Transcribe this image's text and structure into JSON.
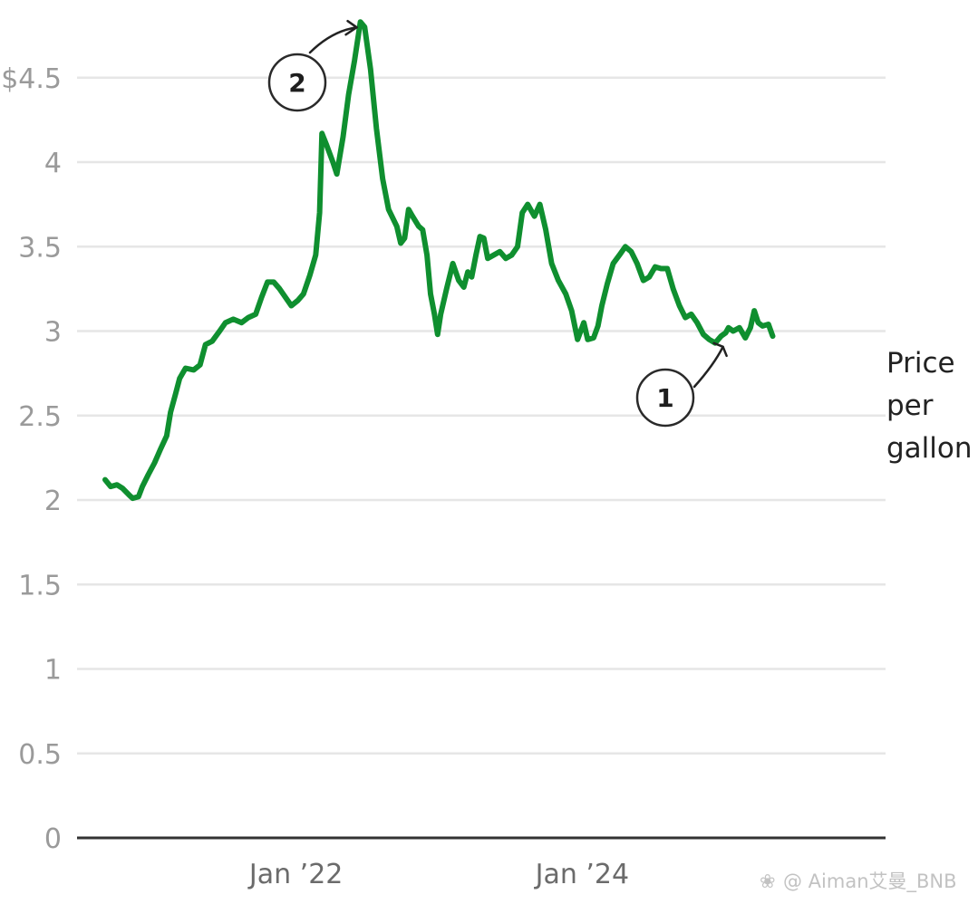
{
  "chart_data": {
    "type": "line",
    "title": "",
    "xlabel": "",
    "ylabel": "",
    "ylim": [
      0,
      5
    ],
    "x_range": [
      "2020-09",
      "2025-05"
    ],
    "yticks": [
      {
        "value": 0,
        "label": "0"
      },
      {
        "value": 0.5,
        "label": "0.5"
      },
      {
        "value": 1,
        "label": "1"
      },
      {
        "value": 1.5,
        "label": "1.5"
      },
      {
        "value": 2,
        "label": "2"
      },
      {
        "value": 2.5,
        "label": "2.5"
      },
      {
        "value": 3,
        "label": "3"
      },
      {
        "value": 3.5,
        "label": "3.5"
      },
      {
        "value": 4,
        "label": "4"
      },
      {
        "value": 4.5,
        "label": "$4.5"
      }
    ],
    "xticks": [
      {
        "date": "2022-01",
        "label": "Jan ’22"
      },
      {
        "date": "2024-01",
        "label": "Jan ’24"
      }
    ],
    "grid": true,
    "series": [
      {
        "name": "Price per gallon",
        "name_lines": [
          "Price",
          "per",
          "gallon"
        ],
        "color": "#0f8f2f",
        "points": [
          [
            "2020-09-01",
            2.12
          ],
          [
            "2020-09-15",
            2.08
          ],
          [
            "2020-10-01",
            2.09
          ],
          [
            "2020-10-15",
            2.07
          ],
          [
            "2020-11-01",
            2.03
          ],
          [
            "2020-11-10",
            2.01
          ],
          [
            "2020-11-25",
            2.02
          ],
          [
            "2020-12-05",
            2.08
          ],
          [
            "2020-12-20",
            2.15
          ],
          [
            "2021-01-05",
            2.22
          ],
          [
            "2021-01-20",
            2.3
          ],
          [
            "2021-02-05",
            2.38
          ],
          [
            "2021-02-15",
            2.52
          ],
          [
            "2021-02-28",
            2.63
          ],
          [
            "2021-03-10",
            2.72
          ],
          [
            "2021-03-25",
            2.78
          ],
          [
            "2021-04-15",
            2.77
          ],
          [
            "2021-05-01",
            2.8
          ],
          [
            "2021-05-15",
            2.92
          ],
          [
            "2021-06-01",
            2.94
          ],
          [
            "2021-06-20",
            3.0
          ],
          [
            "2021-07-05",
            3.05
          ],
          [
            "2021-07-25",
            3.07
          ],
          [
            "2021-08-15",
            3.05
          ],
          [
            "2021-09-01",
            3.08
          ],
          [
            "2021-09-20",
            3.1
          ],
          [
            "2021-10-05",
            3.2
          ],
          [
            "2021-10-20",
            3.29
          ],
          [
            "2021-11-05",
            3.29
          ],
          [
            "2021-11-20",
            3.25
          ],
          [
            "2021-12-05",
            3.2
          ],
          [
            "2021-12-20",
            3.15
          ],
          [
            "2022-01-05",
            3.18
          ],
          [
            "2022-01-20",
            3.22
          ],
          [
            "2022-02-05",
            3.33
          ],
          [
            "2022-02-20",
            3.45
          ],
          [
            "2022-03-02",
            3.7
          ],
          [
            "2022-03-08",
            4.17
          ],
          [
            "2022-03-20",
            4.1
          ],
          [
            "2022-04-05",
            4.0
          ],
          [
            "2022-04-15",
            3.93
          ],
          [
            "2022-05-01",
            4.15
          ],
          [
            "2022-05-15",
            4.4
          ],
          [
            "2022-05-30",
            4.6
          ],
          [
            "2022-06-14",
            4.83
          ],
          [
            "2022-06-25",
            4.8
          ],
          [
            "2022-07-10",
            4.55
          ],
          [
            "2022-07-25",
            4.2
          ],
          [
            "2022-08-10",
            3.9
          ],
          [
            "2022-08-25",
            3.72
          ],
          [
            "2022-09-15",
            3.62
          ],
          [
            "2022-09-25",
            3.52
          ],
          [
            "2022-10-05",
            3.55
          ],
          [
            "2022-10-15",
            3.72
          ],
          [
            "2022-10-25",
            3.68
          ],
          [
            "2022-11-10",
            3.62
          ],
          [
            "2022-11-20",
            3.6
          ],
          [
            "2022-12-01",
            3.45
          ],
          [
            "2022-12-10",
            3.22
          ],
          [
            "2022-12-20",
            3.1
          ],
          [
            "2022-12-28",
            2.98
          ],
          [
            "2023-01-05",
            3.1
          ],
          [
            "2023-01-20",
            3.25
          ],
          [
            "2023-02-05",
            3.4
          ],
          [
            "2023-02-20",
            3.3
          ],
          [
            "2023-03-05",
            3.26
          ],
          [
            "2023-03-15",
            3.35
          ],
          [
            "2023-03-25",
            3.32
          ],
          [
            "2023-04-05",
            3.45
          ],
          [
            "2023-04-15",
            3.56
          ],
          [
            "2023-04-25",
            3.55
          ],
          [
            "2023-05-05",
            3.43
          ],
          [
            "2023-05-20",
            3.45
          ],
          [
            "2023-06-05",
            3.47
          ],
          [
            "2023-06-20",
            3.43
          ],
          [
            "2023-07-05",
            3.45
          ],
          [
            "2023-07-20",
            3.5
          ],
          [
            "2023-08-01",
            3.7
          ],
          [
            "2023-08-15",
            3.75
          ],
          [
            "2023-09-01",
            3.68
          ],
          [
            "2023-09-15",
            3.75
          ],
          [
            "2023-09-30",
            3.6
          ],
          [
            "2023-10-15",
            3.4
          ],
          [
            "2023-11-01",
            3.3
          ],
          [
            "2023-11-20",
            3.22
          ],
          [
            "2023-12-05",
            3.12
          ],
          [
            "2023-12-20",
            2.95
          ],
          [
            "2024-01-05",
            3.05
          ],
          [
            "2024-01-15",
            2.95
          ],
          [
            "2024-01-30",
            2.96
          ],
          [
            "2024-02-10",
            3.03
          ],
          [
            "2024-02-20",
            3.15
          ],
          [
            "2024-03-05",
            3.28
          ],
          [
            "2024-03-20",
            3.4
          ],
          [
            "2024-04-05",
            3.45
          ],
          [
            "2024-04-20",
            3.5
          ],
          [
            "2024-05-05",
            3.47
          ],
          [
            "2024-05-20",
            3.4
          ],
          [
            "2024-06-05",
            3.3
          ],
          [
            "2024-06-20",
            3.32
          ],
          [
            "2024-07-05",
            3.38
          ],
          [
            "2024-07-20",
            3.37
          ],
          [
            "2024-08-05",
            3.37
          ],
          [
            "2024-08-20",
            3.25
          ],
          [
            "2024-09-05",
            3.15
          ],
          [
            "2024-09-20",
            3.08
          ],
          [
            "2024-10-05",
            3.1
          ],
          [
            "2024-10-20",
            3.05
          ],
          [
            "2024-11-05",
            2.98
          ],
          [
            "2024-11-20",
            2.95
          ],
          [
            "2024-12-05",
            2.93
          ],
          [
            "2024-12-20",
            2.97
          ],
          [
            "2025-01-01",
            2.99
          ],
          [
            "2025-01-08",
            3.02
          ],
          [
            "2025-01-20",
            3.0
          ],
          [
            "2025-02-05",
            3.02
          ],
          [
            "2025-02-20",
            2.96
          ],
          [
            "2025-03-05",
            3.02
          ],
          [
            "2025-03-15",
            3.12
          ],
          [
            "2025-03-25",
            3.05
          ],
          [
            "2025-04-05",
            3.03
          ],
          [
            "2025-04-20",
            3.04
          ],
          [
            "2025-05-01",
            2.97
          ]
        ]
      }
    ],
    "annotations": [
      {
        "label": "1",
        "date": "2024-12-25",
        "value": 2.95
      },
      {
        "label": "2",
        "date": "2022-06-14",
        "value": 4.83
      }
    ]
  },
  "watermark": "@ Aiman艾曼_BNB"
}
